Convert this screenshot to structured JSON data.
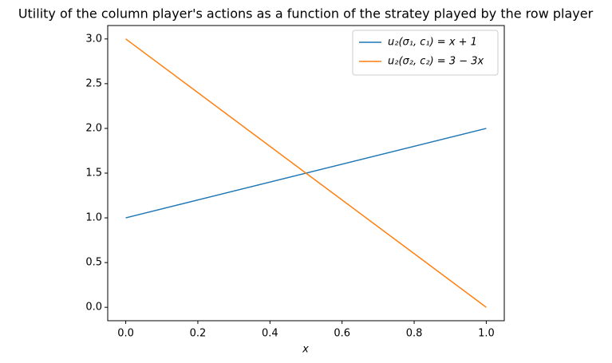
{
  "chart_data": {
    "type": "line",
    "title": "Utility of the column player's actions as a function of the stratey played by the row player",
    "x_label": "x",
    "x": [
      0,
      1
    ],
    "series": [
      {
        "name": "u₂(σ₁, c₁) = x + 1",
        "color": "#1f77b4",
        "values": [
          1,
          2
        ]
      },
      {
        "name": "u₂(σ₂, c₂) = 3 − 3x",
        "color": "#ff7f0e",
        "values": [
          3,
          0
        ]
      }
    ],
    "xlim": [
      -0.05,
      1.05
    ],
    "ylim": [
      -0.15,
      3.15
    ],
    "xticks": [
      {
        "value": 0,
        "label": "0.0"
      },
      0.2,
      0.4,
      0.6,
      0.8,
      {
        "value": 1,
        "label": "1.0"
      }
    ],
    "yticks": [
      {
        "value": 0,
        "label": "0.0"
      },
      0.5,
      {
        "value": 1,
        "label": "1.0"
      },
      1.5,
      {
        "value": 2,
        "label": "2.0"
      },
      2.5,
      {
        "value": 3,
        "label": "3.0"
      }
    ],
    "legend": "upper right",
    "grid": false
  }
}
